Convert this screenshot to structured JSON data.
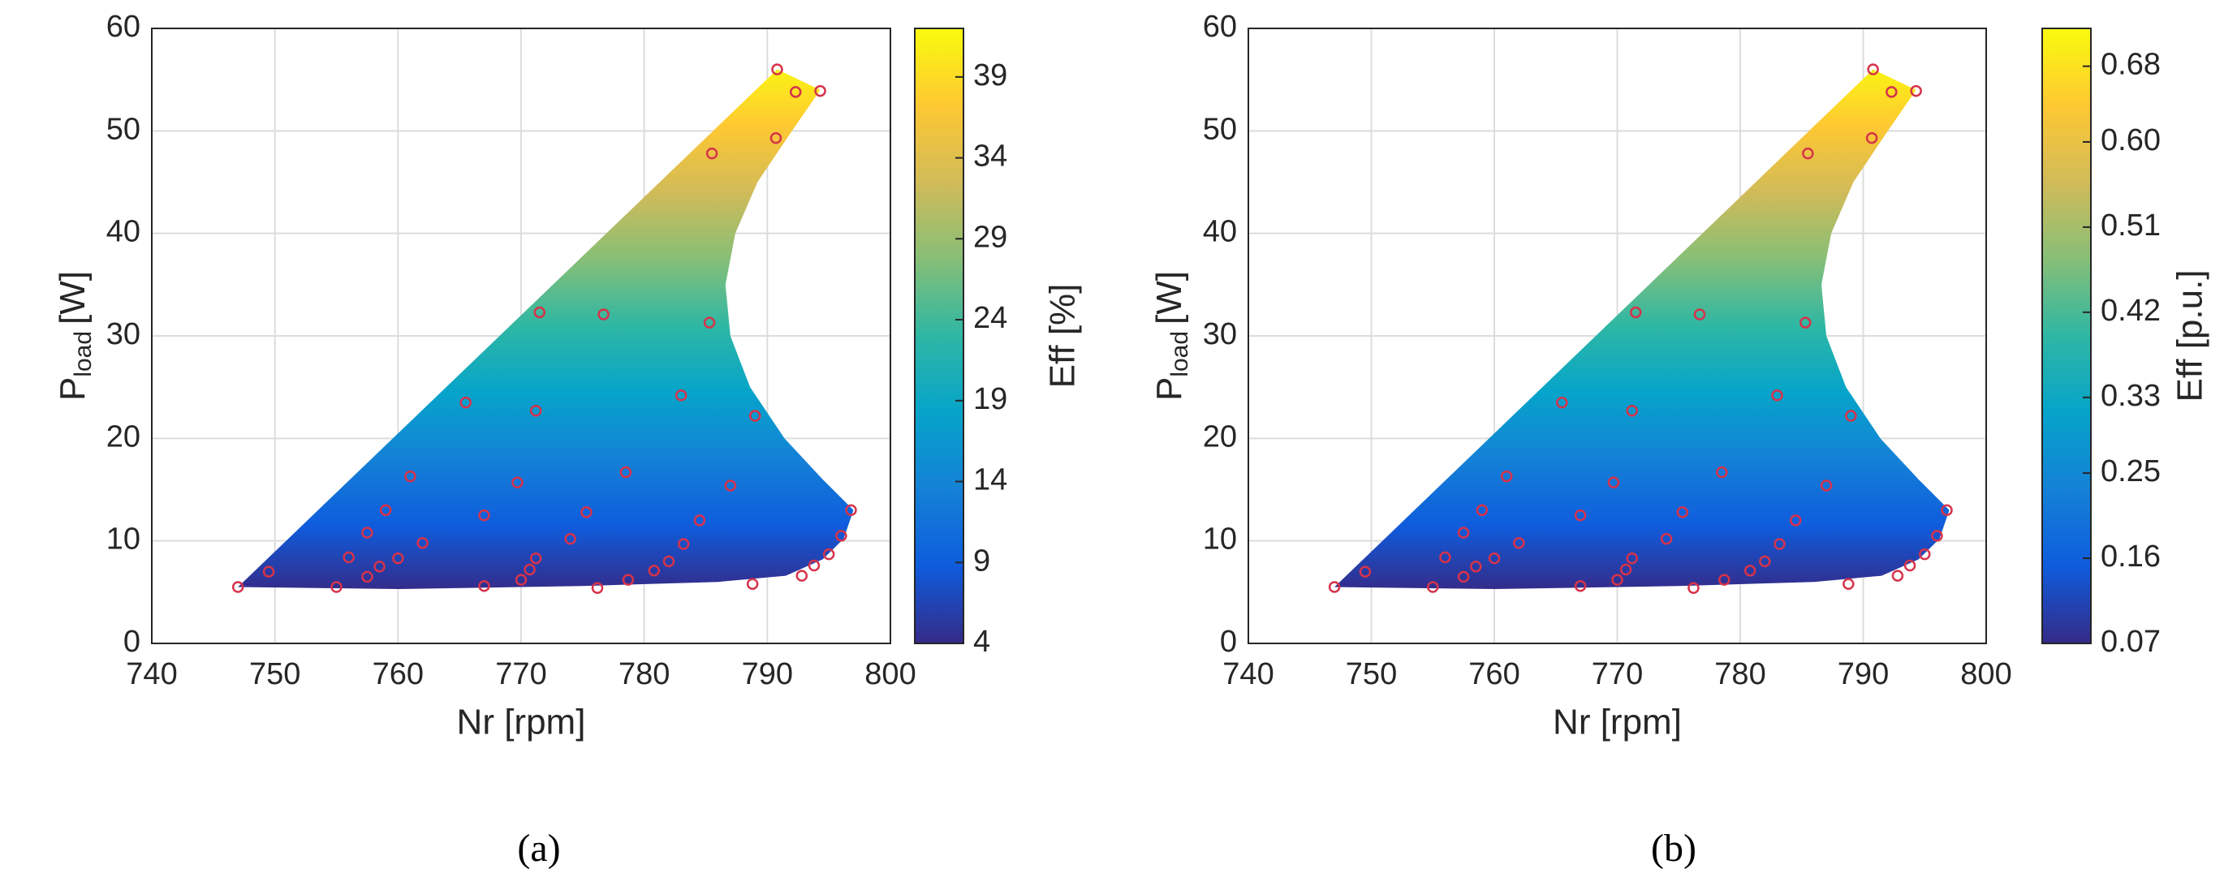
{
  "chart_data": [
    {
      "type": "scatter",
      "xlabel": "Nr [rpm]",
      "ylabel": "P",
      "ylabel_sub": "load",
      "ylabel_unit": "[W]",
      "colorbar_label": "Eff [%]",
      "caption": "(a)",
      "color": "#d6334a",
      "grid": true,
      "x": [
        747,
        749.5,
        755,
        756,
        757.5,
        759,
        757.5,
        758.5,
        760,
        761,
        762,
        765.5,
        767,
        767,
        769.7,
        770,
        770.7,
        771.2,
        771.2,
        771.5,
        774,
        775.3,
        776.2,
        776.7,
        778.5,
        778.7,
        780.8,
        782,
        783,
        783.2,
        784.5,
        785.3,
        785.5,
        787,
        788.8,
        789,
        790.7,
        790.8,
        792.3,
        792.8,
        793.8,
        794.3,
        795,
        796,
        796.8
      ],
      "y": [
        5.5,
        7,
        5.5,
        8.4,
        10.8,
        13,
        6.5,
        7.5,
        8.3,
        16.3,
        9.8,
        23.5,
        12.5,
        5.6,
        15.7,
        6.2,
        7.2,
        8.3,
        22.7,
        32.3,
        10.2,
        12.8,
        5.4,
        32.1,
        16.7,
        6.2,
        7.1,
        8,
        24.2,
        9.7,
        12,
        31.3,
        47.8,
        15.4,
        5.8,
        22.2,
        49.3,
        56,
        53.8,
        6.6,
        7.6,
        53.9,
        8.7,
        10.5,
        13
      ],
      "xlim": [
        740,
        800
      ],
      "xticks": [
        740,
        750,
        760,
        770,
        780,
        790,
        800
      ],
      "ylim": [
        0,
        60
      ],
      "yticks": [
        0,
        10,
        20,
        30,
        40,
        50,
        60
      ],
      "clim": [
        4,
        42
      ],
      "cticks": [
        4,
        9,
        14,
        19,
        24,
        29,
        34,
        39
      ]
    },
    {
      "type": "scatter",
      "xlabel": "Nr [rpm]",
      "ylabel": "P",
      "ylabel_sub": "load",
      "ylabel_unit": "[W]",
      "colorbar_label": "Eff [p.u.]",
      "caption": "(b)",
      "color": "#d6334a",
      "grid": true,
      "x": [
        747,
        749.5,
        755,
        756,
        757.5,
        759,
        757.5,
        758.5,
        760,
        761,
        762,
        765.5,
        767,
        767,
        769.7,
        770,
        770.7,
        771.2,
        771.2,
        771.5,
        774,
        775.3,
        776.2,
        776.7,
        778.5,
        778.7,
        780.8,
        782,
        783,
        783.2,
        784.5,
        785.3,
        785.5,
        787,
        788.8,
        789,
        790.7,
        790.8,
        792.3,
        792.8,
        793.8,
        794.3,
        795,
        796,
        796.8
      ],
      "y": [
        5.5,
        7,
        5.5,
        8.4,
        10.8,
        13,
        6.5,
        7.5,
        8.3,
        16.3,
        9.8,
        23.5,
        12.5,
        5.6,
        15.7,
        6.2,
        7.2,
        8.3,
        22.7,
        32.3,
        10.2,
        12.8,
        5.4,
        32.1,
        16.7,
        6.2,
        7.1,
        8,
        24.2,
        9.7,
        12,
        31.3,
        47.8,
        15.4,
        5.8,
        22.2,
        49.3,
        56,
        53.8,
        6.6,
        7.6,
        53.9,
        8.7,
        10.5,
        13
      ],
      "xlim": [
        740,
        800
      ],
      "xticks": [
        740,
        750,
        760,
        770,
        780,
        790,
        800
      ],
      "ylim": [
        0,
        60
      ],
      "yticks": [
        0,
        10,
        20,
        30,
        40,
        50,
        60
      ],
      "clim": [
        0.07,
        0.72
      ],
      "cticks": [
        0.07,
        0.16,
        0.25,
        0.33,
        0.42,
        0.51,
        {
          "value": 0.6,
          "label": "0.60"
        },
        0.68
      ]
    }
  ]
}
